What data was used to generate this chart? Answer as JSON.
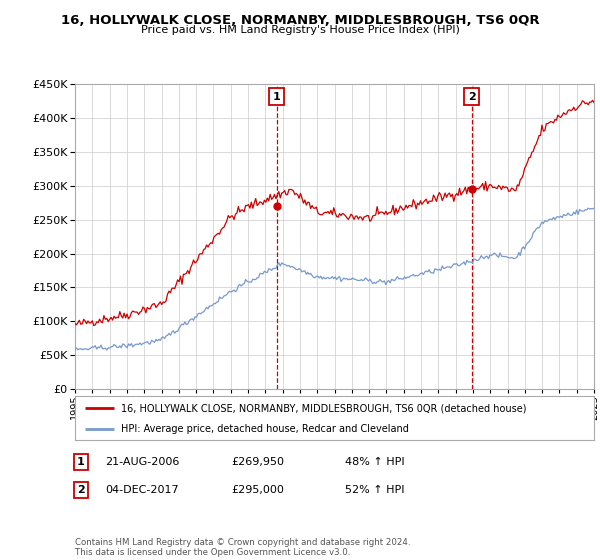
{
  "title": "16, HOLLYWALK CLOSE, NORMANBY, MIDDLESBROUGH, TS6 0QR",
  "subtitle": "Price paid vs. HM Land Registry's House Price Index (HPI)",
  "legend_line1": "16, HOLLYWALK CLOSE, NORMANBY, MIDDLESBROUGH, TS6 0QR (detached house)",
  "legend_line2": "HPI: Average price, detached house, Redcar and Cleveland",
  "sale1_label": "1",
  "sale1_date": "21-AUG-2006",
  "sale1_price": "£269,950",
  "sale1_hpi": "48% ↑ HPI",
  "sale2_label": "2",
  "sale2_date": "04-DEC-2017",
  "sale2_price": "£295,000",
  "sale2_hpi": "52% ↑ HPI",
  "footnote": "Contains HM Land Registry data © Crown copyright and database right 2024.\nThis data is licensed under the Open Government Licence v3.0.",
  "red_color": "#cc0000",
  "blue_color": "#7799cc",
  "sale1_year": 2006.65,
  "sale2_year": 2017.92,
  "sale1_value": 269950,
  "sale2_value": 295000,
  "ylim_min": 0,
  "ylim_max": 450000,
  "xlim_min": 1995,
  "xlim_max": 2025
}
